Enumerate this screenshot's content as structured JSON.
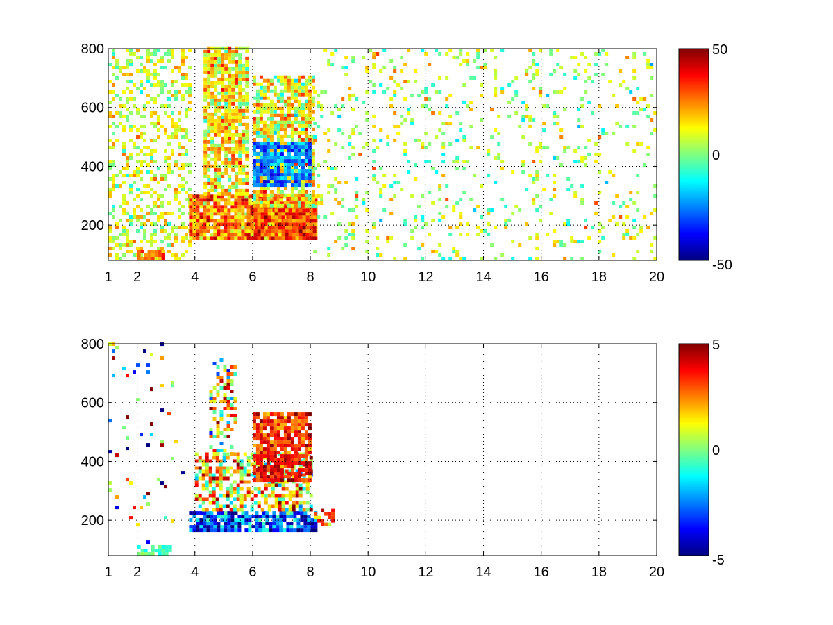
{
  "figure": {
    "background": "#ffffff",
    "colormap": "jet"
  },
  "chart_data": [
    {
      "type": "heatmap",
      "title": "",
      "xlabel": "",
      "ylabel": "",
      "xlim": [
        1,
        20
      ],
      "ylim": [
        80,
        800
      ],
      "x_ticks": [
        1,
        2,
        4,
        6,
        8,
        10,
        12,
        14,
        16,
        18,
        20
      ],
      "y_ticks": [
        200,
        400,
        600,
        800
      ],
      "grid": "dotted",
      "colorbar": {
        "min": -50,
        "max": 50,
        "ticks": [
          50,
          0,
          -50
        ]
      },
      "data_regions": [
        {
          "x": [
            1.0,
            3.8
          ],
          "y": [
            80,
            800
          ],
          "value": 8,
          "spread": 8,
          "density": 0.35
        },
        {
          "x": [
            2.0,
            2.9
          ],
          "y": [
            80,
            110
          ],
          "value": 28,
          "spread": 6,
          "density": 0.9
        },
        {
          "x": [
            3.8,
            8.2
          ],
          "y": [
            150,
            300
          ],
          "value": 25,
          "spread": 10,
          "density": 0.95
        },
        {
          "x": [
            4.3,
            5.8
          ],
          "y": [
            300,
            800
          ],
          "value": 15,
          "spread": 10,
          "density": 0.8
        },
        {
          "x": [
            5.8,
            8.1
          ],
          "y": [
            150,
            260
          ],
          "value": 30,
          "spread": 10,
          "density": 0.95
        },
        {
          "x": [
            6.0,
            8.1
          ],
          "y": [
            260,
            700
          ],
          "value": 12,
          "spread": 12,
          "density": 0.75
        },
        {
          "x": [
            6.0,
            8.0
          ],
          "y": [
            330,
            480
          ],
          "value": -25,
          "spread": 8,
          "density": 0.85
        },
        {
          "x": [
            8.1,
            20.0
          ],
          "y": [
            80,
            800
          ],
          "value": 5,
          "spread": 10,
          "density": 0.12
        }
      ]
    },
    {
      "type": "heatmap",
      "title": "",
      "xlabel": "",
      "ylabel": "",
      "xlim": [
        1,
        20
      ],
      "ylim": [
        80,
        800
      ],
      "x_ticks": [
        1,
        2,
        4,
        6,
        8,
        10,
        12,
        14,
        16,
        18,
        20
      ],
      "y_ticks": [
        200,
        400,
        600,
        800
      ],
      "grid": "dotted",
      "colorbar": {
        "min": -5,
        "max": 5,
        "ticks": [
          5,
          0,
          -5
        ]
      },
      "data_regions": [
        {
          "x": [
            1.0,
            3.6
          ],
          "y": [
            120,
            800
          ],
          "value": 0,
          "spread": 4,
          "density": 0.03
        },
        {
          "x": [
            2.0,
            3.2
          ],
          "y": [
            80,
            110
          ],
          "value": -0.5,
          "spread": 0.5,
          "density": 0.6
        },
        {
          "x": [
            3.8,
            8.2
          ],
          "y": [
            160,
            230
          ],
          "value": -3,
          "spread": 1.5,
          "density": 0.85
        },
        {
          "x": [
            4.0,
            8.0
          ],
          "y": [
            230,
            420
          ],
          "value": 1.5,
          "spread": 2,
          "density": 0.55
        },
        {
          "x": [
            4.5,
            5.4
          ],
          "y": [
            420,
            750
          ],
          "value": 1,
          "spread": 2,
          "density": 0.4
        },
        {
          "x": [
            6.0,
            8.0
          ],
          "y": [
            330,
            560
          ],
          "value": 3.5,
          "spread": 0.8,
          "density": 0.85
        },
        {
          "x": [
            8.0,
            8.8
          ],
          "y": [
            180,
            230
          ],
          "value": 2.5,
          "spread": 1,
          "density": 0.3
        }
      ]
    }
  ]
}
